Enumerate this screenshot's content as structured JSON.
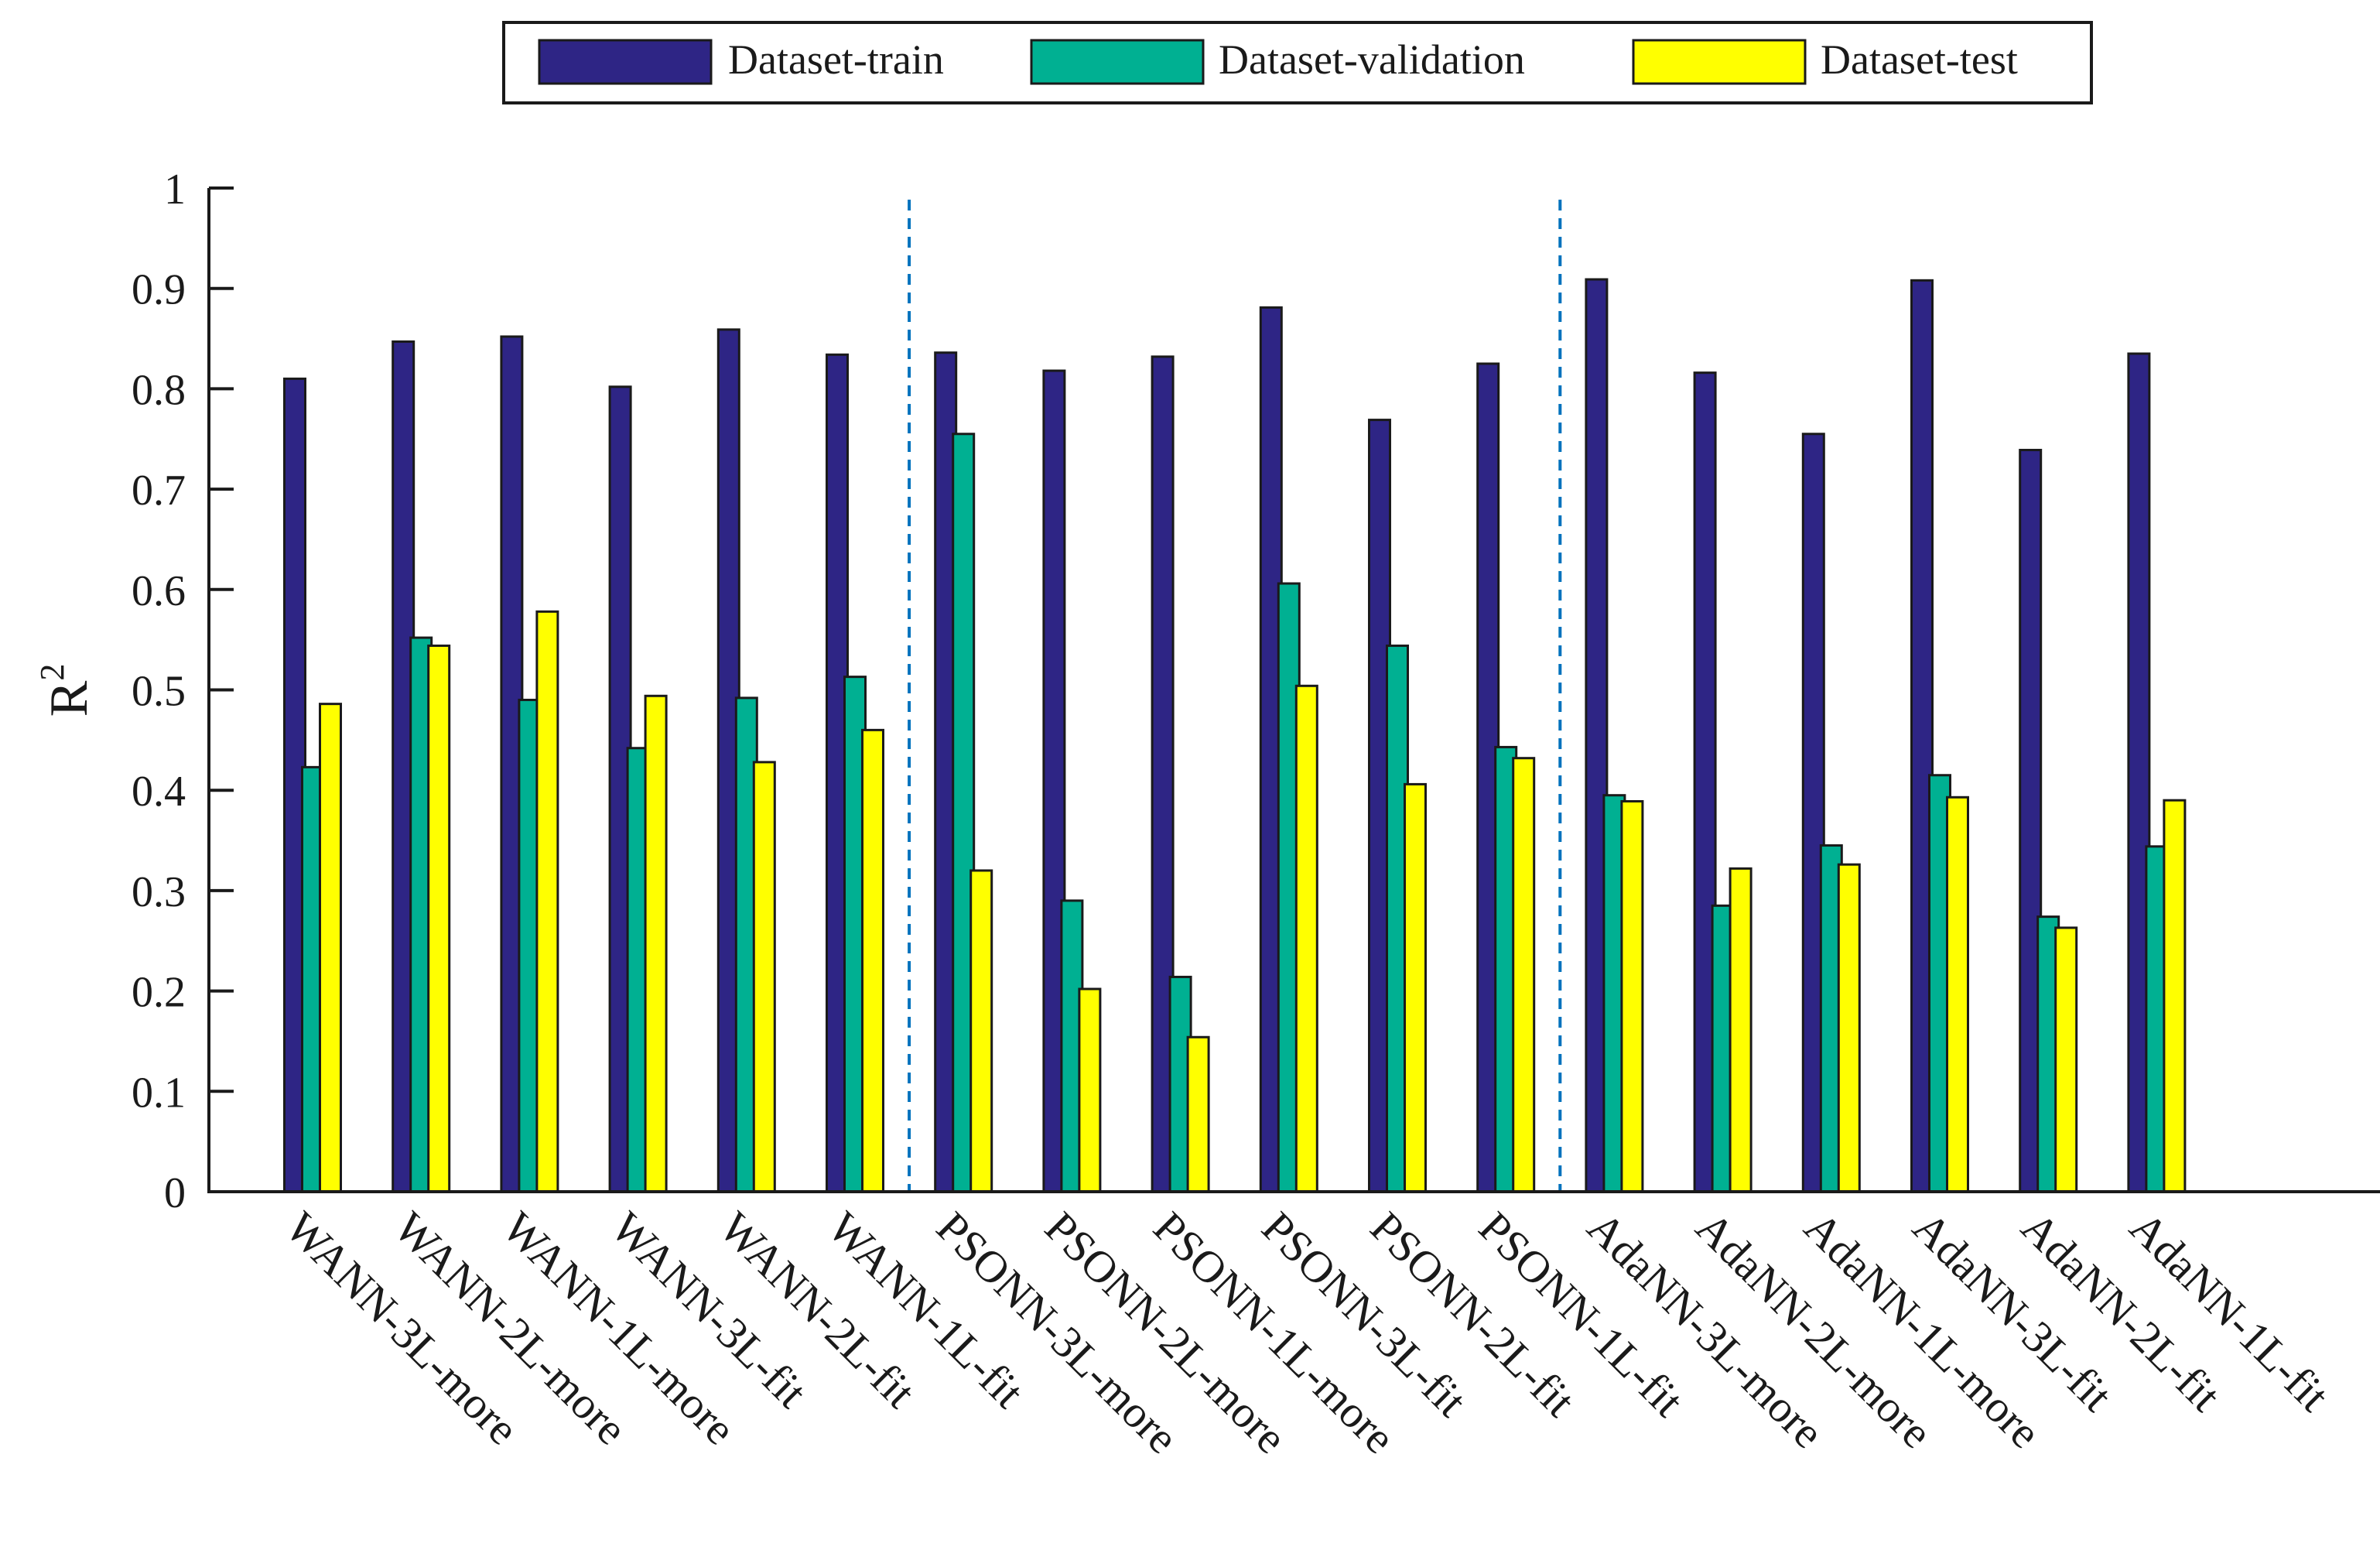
{
  "chart_data": {
    "type": "bar",
    "title": "",
    "xlabel": "",
    "ylabel": "R",
    "ylabel_superscript": "2",
    "ylim": [
      0,
      1
    ],
    "yticks": [
      "0",
      "0.1",
      "0.2",
      "0.3",
      "0.4",
      "0.5",
      "0.6",
      "0.7",
      "0.8",
      "0.9",
      "1"
    ],
    "grid": false,
    "legend_position": "top",
    "categories": [
      "WANN-3L-more",
      "WANN-2L-more",
      "WANN-1L-more",
      "WANN-3L-fit",
      "WANN-2L-fit",
      "WANN-1L-fit",
      "PSONN-3L-more",
      "PSONN-2L-more",
      "PSONN-1L-more",
      "PSONN-3L-fit",
      "PSONN-2L-fit",
      "PSONN-1L-fit",
      "AdaNN-3L-more",
      "AdaNN-2L-more",
      "AdaNN-1L-more",
      "AdaNN-3L-fit",
      "AdaNN-2L-fit",
      "AdaNN-1L-fit"
    ],
    "series": [
      {
        "name": "Dataset-train",
        "color": "#2e2585",
        "values": [
          0.81,
          0.847,
          0.852,
          0.802,
          0.859,
          0.834,
          0.836,
          0.818,
          0.832,
          0.881,
          0.769,
          0.825,
          0.909,
          0.816,
          0.755,
          0.908,
          0.739,
          0.835
        ]
      },
      {
        "name": "Dataset-validation",
        "color": "#00b092",
        "values": [
          0.423,
          0.552,
          0.49,
          0.442,
          0.492,
          0.513,
          0.755,
          0.29,
          0.214,
          0.606,
          0.544,
          0.443,
          0.395,
          0.285,
          0.345,
          0.415,
          0.274,
          0.344
        ]
      },
      {
        "name": "Dataset-test",
        "color": "#ffff00",
        "values": [
          0.486,
          0.544,
          0.578,
          0.494,
          0.428,
          0.46,
          0.32,
          0.202,
          0.154,
          0.504,
          0.406,
          0.432,
          0.389,
          0.322,
          0.326,
          0.393,
          0.263,
          0.39
        ]
      }
    ],
    "group_separators_after": [
      6,
      12
    ],
    "separator_color": "#0072bd"
  }
}
